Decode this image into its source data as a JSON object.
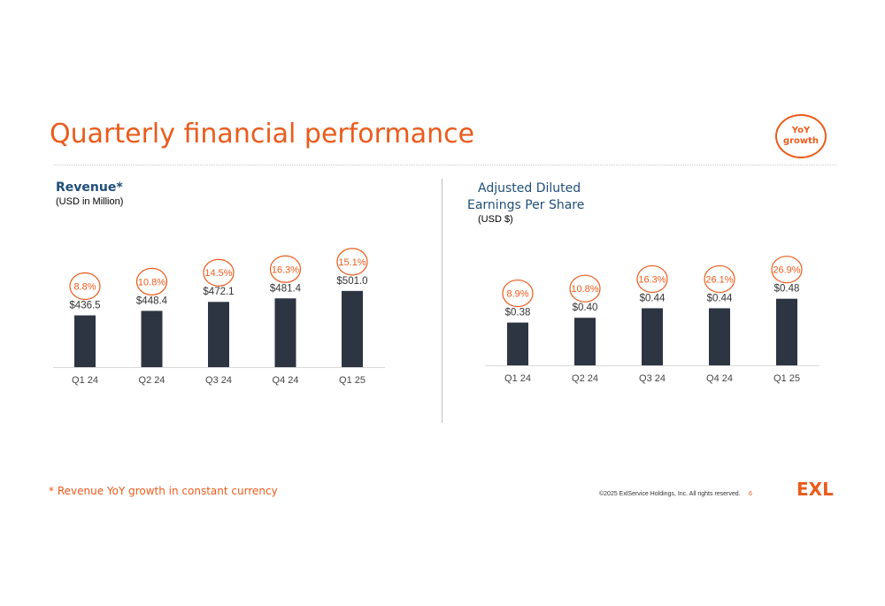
{
  "slide": {
    "title": "Quarterly financial performance",
    "yoy_badge": [
      "YoY",
      "growth"
    ],
    "footnote": "* Revenue YoY growth in constant currency",
    "copyright": "©2025 ExlService Holdings, Inc. All rights reserved.",
    "page_number": "6",
    "logo": "EXL"
  },
  "colors": {
    "accent": "#EA5B1C",
    "bar": "#2D3542",
    "title_blue": "#1F4E79",
    "axis": "#d9d9d9"
  },
  "chart_data": [
    {
      "type": "bar",
      "title": "Revenue*",
      "subtitle": "(USD in Million)",
      "categories": [
        "Q1 24",
        "Q2 24",
        "Q3 24",
        "Q4 24",
        "Q1 25"
      ],
      "values": [
        436.5,
        448.4,
        472.1,
        481.4,
        501.0
      ],
      "value_labels": [
        "$436.5",
        "$448.4",
        "$472.1",
        "$481.4",
        "$501.0"
      ],
      "yoy_growth_labels": [
        "8.8%",
        "10.8%",
        "14.5%",
        "16.3%",
        "15.1%"
      ],
      "ylim": [
        300,
        510
      ]
    },
    {
      "type": "bar",
      "title": [
        "Adjusted Diluted",
        "Earnings Per Share"
      ],
      "subtitle": "(USD $)",
      "categories": [
        "Q1 24",
        "Q2 24",
        "Q3 24",
        "Q4 24",
        "Q1 25"
      ],
      "values": [
        0.38,
        0.4,
        0.44,
        0.44,
        0.48
      ],
      "value_labels": [
        "$0.38",
        "$0.40",
        "$0.44",
        "$0.44",
        "$0.48"
      ],
      "yoy_growth_labels": [
        "8.9%",
        "10.8%",
        "16.3%",
        "26.1%",
        "26.9%"
      ],
      "ylim": [
        0.2,
        0.49
      ]
    }
  ]
}
